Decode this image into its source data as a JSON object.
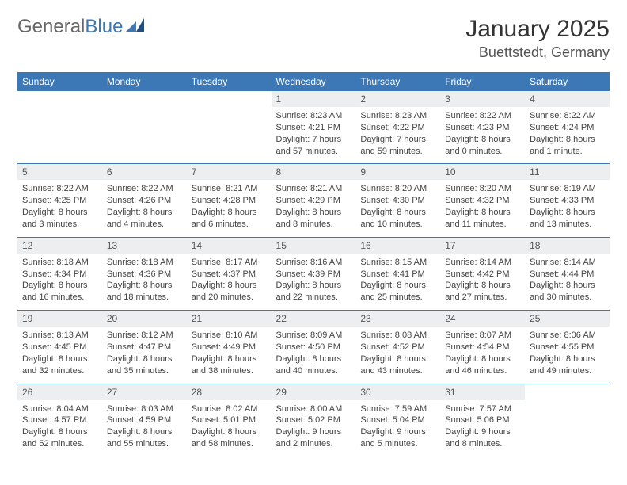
{
  "brand": {
    "part1": "General",
    "part2": "Blue"
  },
  "title": "January 2025",
  "location": "Buettstedt, Germany",
  "colors": {
    "header_bg": "#3b78b5",
    "header_text": "#ffffff",
    "daynum_bg": "#eceef0",
    "page_bg": "#ffffff",
    "text": "#333333"
  },
  "day_labels": [
    "Sunday",
    "Monday",
    "Tuesday",
    "Wednesday",
    "Thursday",
    "Friday",
    "Saturday"
  ],
  "weeks": [
    [
      null,
      null,
      null,
      {
        "n": "1",
        "sr": "Sunrise: 8:23 AM",
        "ss": "Sunset: 4:21 PM",
        "d1": "Daylight: 7 hours",
        "d2": "and 57 minutes."
      },
      {
        "n": "2",
        "sr": "Sunrise: 8:23 AM",
        "ss": "Sunset: 4:22 PM",
        "d1": "Daylight: 7 hours",
        "d2": "and 59 minutes."
      },
      {
        "n": "3",
        "sr": "Sunrise: 8:22 AM",
        "ss": "Sunset: 4:23 PM",
        "d1": "Daylight: 8 hours",
        "d2": "and 0 minutes."
      },
      {
        "n": "4",
        "sr": "Sunrise: 8:22 AM",
        "ss": "Sunset: 4:24 PM",
        "d1": "Daylight: 8 hours",
        "d2": "and 1 minute."
      }
    ],
    [
      {
        "n": "5",
        "sr": "Sunrise: 8:22 AM",
        "ss": "Sunset: 4:25 PM",
        "d1": "Daylight: 8 hours",
        "d2": "and 3 minutes."
      },
      {
        "n": "6",
        "sr": "Sunrise: 8:22 AM",
        "ss": "Sunset: 4:26 PM",
        "d1": "Daylight: 8 hours",
        "d2": "and 4 minutes."
      },
      {
        "n": "7",
        "sr": "Sunrise: 8:21 AM",
        "ss": "Sunset: 4:28 PM",
        "d1": "Daylight: 8 hours",
        "d2": "and 6 minutes."
      },
      {
        "n": "8",
        "sr": "Sunrise: 8:21 AM",
        "ss": "Sunset: 4:29 PM",
        "d1": "Daylight: 8 hours",
        "d2": "and 8 minutes."
      },
      {
        "n": "9",
        "sr": "Sunrise: 8:20 AM",
        "ss": "Sunset: 4:30 PM",
        "d1": "Daylight: 8 hours",
        "d2": "and 10 minutes."
      },
      {
        "n": "10",
        "sr": "Sunrise: 8:20 AM",
        "ss": "Sunset: 4:32 PM",
        "d1": "Daylight: 8 hours",
        "d2": "and 11 minutes."
      },
      {
        "n": "11",
        "sr": "Sunrise: 8:19 AM",
        "ss": "Sunset: 4:33 PM",
        "d1": "Daylight: 8 hours",
        "d2": "and 13 minutes."
      }
    ],
    [
      {
        "n": "12",
        "sr": "Sunrise: 8:18 AM",
        "ss": "Sunset: 4:34 PM",
        "d1": "Daylight: 8 hours",
        "d2": "and 16 minutes."
      },
      {
        "n": "13",
        "sr": "Sunrise: 8:18 AM",
        "ss": "Sunset: 4:36 PM",
        "d1": "Daylight: 8 hours",
        "d2": "and 18 minutes."
      },
      {
        "n": "14",
        "sr": "Sunrise: 8:17 AM",
        "ss": "Sunset: 4:37 PM",
        "d1": "Daylight: 8 hours",
        "d2": "and 20 minutes."
      },
      {
        "n": "15",
        "sr": "Sunrise: 8:16 AM",
        "ss": "Sunset: 4:39 PM",
        "d1": "Daylight: 8 hours",
        "d2": "and 22 minutes."
      },
      {
        "n": "16",
        "sr": "Sunrise: 8:15 AM",
        "ss": "Sunset: 4:41 PM",
        "d1": "Daylight: 8 hours",
        "d2": "and 25 minutes."
      },
      {
        "n": "17",
        "sr": "Sunrise: 8:14 AM",
        "ss": "Sunset: 4:42 PM",
        "d1": "Daylight: 8 hours",
        "d2": "and 27 minutes."
      },
      {
        "n": "18",
        "sr": "Sunrise: 8:14 AM",
        "ss": "Sunset: 4:44 PM",
        "d1": "Daylight: 8 hours",
        "d2": "and 30 minutes."
      }
    ],
    [
      {
        "n": "19",
        "sr": "Sunrise: 8:13 AM",
        "ss": "Sunset: 4:45 PM",
        "d1": "Daylight: 8 hours",
        "d2": "and 32 minutes."
      },
      {
        "n": "20",
        "sr": "Sunrise: 8:12 AM",
        "ss": "Sunset: 4:47 PM",
        "d1": "Daylight: 8 hours",
        "d2": "and 35 minutes."
      },
      {
        "n": "21",
        "sr": "Sunrise: 8:10 AM",
        "ss": "Sunset: 4:49 PM",
        "d1": "Daylight: 8 hours",
        "d2": "and 38 minutes."
      },
      {
        "n": "22",
        "sr": "Sunrise: 8:09 AM",
        "ss": "Sunset: 4:50 PM",
        "d1": "Daylight: 8 hours",
        "d2": "and 40 minutes."
      },
      {
        "n": "23",
        "sr": "Sunrise: 8:08 AM",
        "ss": "Sunset: 4:52 PM",
        "d1": "Daylight: 8 hours",
        "d2": "and 43 minutes."
      },
      {
        "n": "24",
        "sr": "Sunrise: 8:07 AM",
        "ss": "Sunset: 4:54 PM",
        "d1": "Daylight: 8 hours",
        "d2": "and 46 minutes."
      },
      {
        "n": "25",
        "sr": "Sunrise: 8:06 AM",
        "ss": "Sunset: 4:55 PM",
        "d1": "Daylight: 8 hours",
        "d2": "and 49 minutes."
      }
    ],
    [
      {
        "n": "26",
        "sr": "Sunrise: 8:04 AM",
        "ss": "Sunset: 4:57 PM",
        "d1": "Daylight: 8 hours",
        "d2": "and 52 minutes."
      },
      {
        "n": "27",
        "sr": "Sunrise: 8:03 AM",
        "ss": "Sunset: 4:59 PM",
        "d1": "Daylight: 8 hours",
        "d2": "and 55 minutes."
      },
      {
        "n": "28",
        "sr": "Sunrise: 8:02 AM",
        "ss": "Sunset: 5:01 PM",
        "d1": "Daylight: 8 hours",
        "d2": "and 58 minutes."
      },
      {
        "n": "29",
        "sr": "Sunrise: 8:00 AM",
        "ss": "Sunset: 5:02 PM",
        "d1": "Daylight: 9 hours",
        "d2": "and 2 minutes."
      },
      {
        "n": "30",
        "sr": "Sunrise: 7:59 AM",
        "ss": "Sunset: 5:04 PM",
        "d1": "Daylight: 9 hours",
        "d2": "and 5 minutes."
      },
      {
        "n": "31",
        "sr": "Sunrise: 7:57 AM",
        "ss": "Sunset: 5:06 PM",
        "d1": "Daylight: 9 hours",
        "d2": "and 8 minutes."
      },
      null
    ]
  ]
}
